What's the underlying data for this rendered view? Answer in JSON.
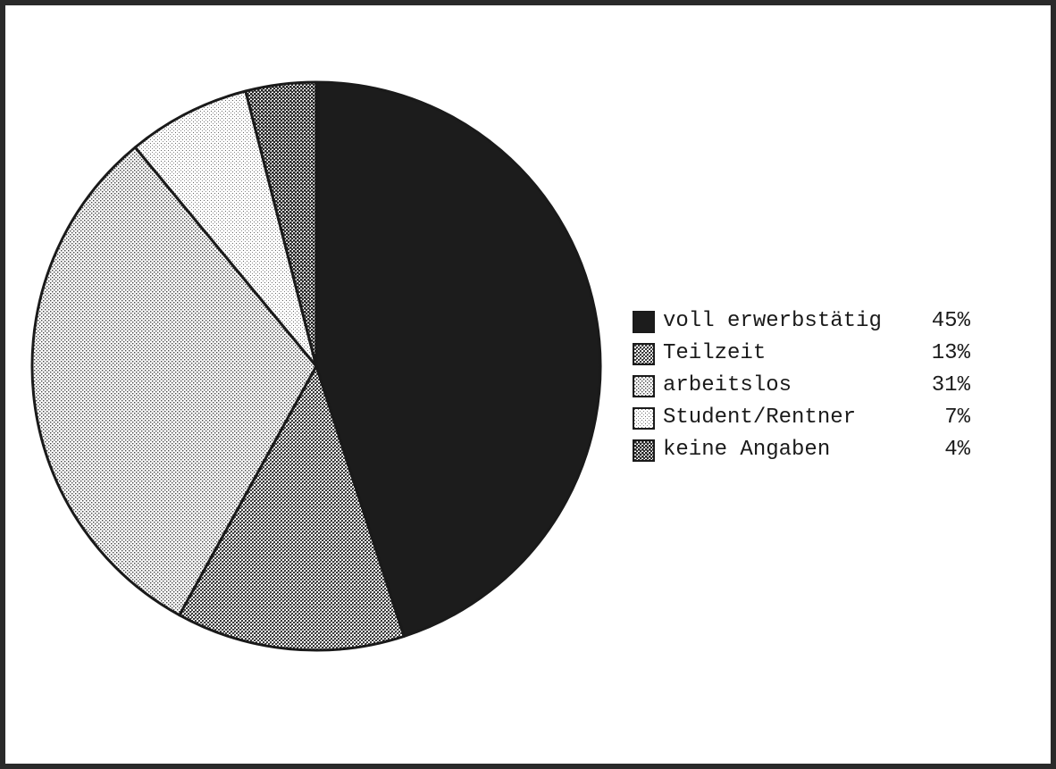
{
  "chart_data": {
    "type": "pie",
    "title": "",
    "legend_placement": "right",
    "slices": [
      {
        "label": "voll erwerbstätig",
        "value": 45,
        "value_label": "45%",
        "pattern": "solid",
        "pattern_icon": "solid-dark-swatch-icon"
      },
      {
        "label": "Teilzeit",
        "value": 13,
        "value_label": "13%",
        "pattern": "dense-check",
        "pattern_icon": "dense-check-swatch-icon"
      },
      {
        "label": "arbeitslos",
        "value": 31,
        "value_label": "31%",
        "pattern": "medium-dots",
        "pattern_icon": "medium-dots-swatch-icon"
      },
      {
        "label": "Student/Rentner",
        "value": 7,
        "value_label": "7%",
        "pattern": "light-dots",
        "pattern_icon": "light-dots-swatch-icon"
      },
      {
        "label": "keine Angaben",
        "value": 4,
        "value_label": "4%",
        "pattern": "dark-check",
        "pattern_icon": "dark-check-swatch-icon"
      }
    ],
    "colors": {
      "ink": "#1a1a1a",
      "frame": "#2a2a2a",
      "background": "#ffffff"
    }
  }
}
